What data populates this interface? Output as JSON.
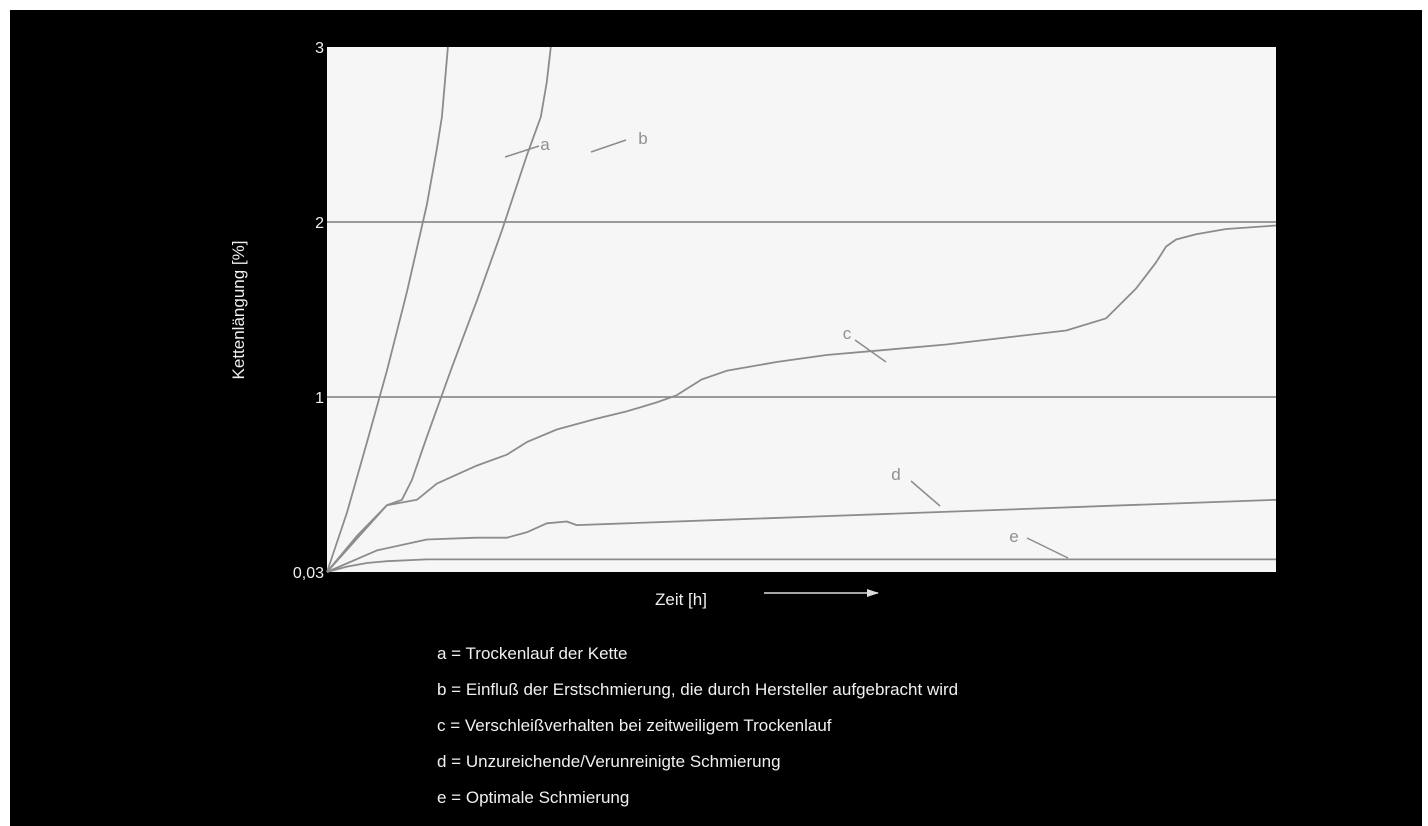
{
  "chart_data": {
    "type": "line",
    "title": "",
    "xlabel": "Zeit [h]",
    "ylabel": "Kettenlängung [%]",
    "y_ticks": [
      "0,03",
      "1",
      "2",
      "3"
    ],
    "y_tick_values": [
      0.03,
      1,
      2,
      3
    ],
    "ylim": [
      0.03,
      3
    ],
    "grid": "horizontal",
    "plot_background": "#f6f6f6",
    "line_color": "#8c8c8c",
    "series": [
      {
        "name": "a",
        "x": [
          0,
          20,
          40,
          60,
          80,
          100,
          110,
          115,
          118,
          121
        ],
        "y": [
          0.03,
          0.36,
          0.75,
          1.15,
          1.6,
          2.1,
          2.42,
          2.6,
          2.8,
          3.0
        ]
      },
      {
        "name": "b",
        "x": [
          0,
          30,
          60,
          75,
          85,
          100,
          125,
          150,
          175,
          200,
          214,
          220,
          224
        ],
        "y": [
          0.03,
          0.23,
          0.4,
          0.43,
          0.54,
          0.78,
          1.17,
          1.55,
          1.95,
          2.38,
          2.6,
          2.8,
          3.0
        ]
      },
      {
        "name": "c",
        "x": [
          0,
          60,
          90,
          110,
          150,
          180,
          200,
          230,
          270,
          300,
          330,
          350,
          375,
          400,
          450,
          500,
          560,
          620,
          680,
          740,
          780,
          810,
          830,
          840,
          850,
          870,
          900,
          950
        ],
        "y": [
          0.03,
          0.4,
          0.43,
          0.52,
          0.62,
          0.68,
          0.75,
          0.82,
          0.88,
          0.92,
          0.97,
          1.01,
          1.1,
          1.15,
          1.2,
          1.24,
          1.27,
          1.3,
          1.34,
          1.38,
          1.45,
          1.62,
          1.77,
          1.86,
          1.9,
          1.93,
          1.96,
          1.98
        ]
      },
      {
        "name": "d",
        "x": [
          0,
          50,
          100,
          150,
          180,
          200,
          220,
          240,
          250,
          300,
          400,
          500,
          600,
          700,
          800,
          900,
          950
        ],
        "y": [
          0.03,
          0.15,
          0.21,
          0.22,
          0.22,
          0.25,
          0.3,
          0.31,
          0.29,
          0.3,
          0.32,
          0.34,
          0.36,
          0.38,
          0.4,
          0.42,
          0.43
        ]
      },
      {
        "name": "e",
        "x": [
          0,
          20,
          40,
          60,
          100,
          200,
          400,
          600,
          800,
          950
        ],
        "y": [
          0.03,
          0.06,
          0.08,
          0.09,
          0.1,
          0.1,
          0.1,
          0.1,
          0.1,
          0.1
        ]
      }
    ]
  },
  "legend": [
    {
      "key": "a =",
      "text": "Trockenlauf der Kette"
    },
    {
      "key": "b =",
      "text": "Einfluß der Erstschmierung, die durch Hersteller aufgebracht wird"
    },
    {
      "key": "c =",
      "text": "Verschleißverhalten bei zeitweiligem Trockenlauf"
    },
    {
      "key": "d =",
      "text": "Unzureichende/Verunreinigte Schmierung"
    },
    {
      "key": "e =",
      "text": "Optimale Schmierung"
    }
  ]
}
